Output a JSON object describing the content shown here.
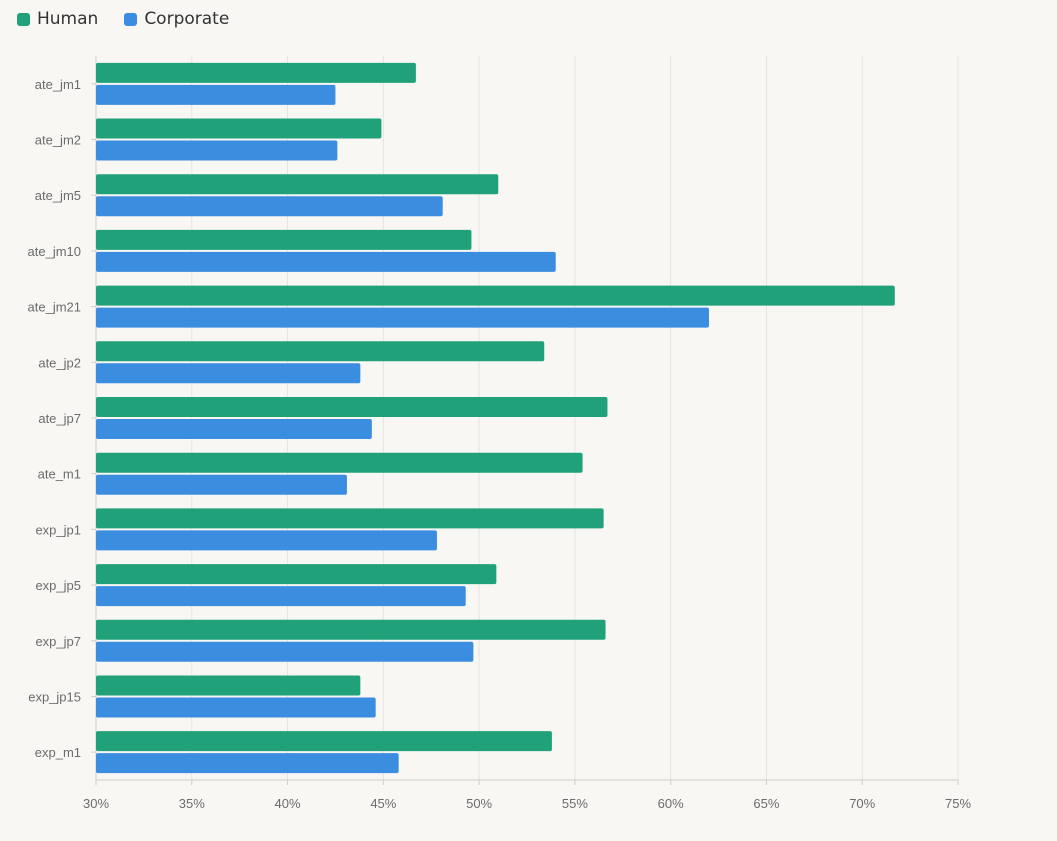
{
  "chart_data": {
    "type": "bar",
    "orientation": "horizontal",
    "categories": [
      "ate_jm1",
      "ate_jm2",
      "ate_jm5",
      "ate_jm10",
      "ate_jm21",
      "ate_jp2",
      "ate_jp7",
      "ate_m1",
      "exp_jp1",
      "exp_jp5",
      "exp_jp7",
      "exp_jp15",
      "exp_m1"
    ],
    "series": [
      {
        "name": "Human",
        "color": "#21a179",
        "values": [
          46.7,
          44.9,
          51.0,
          49.6,
          71.7,
          53.4,
          56.7,
          55.4,
          56.5,
          50.9,
          56.6,
          43.8,
          53.8
        ]
      },
      {
        "name": "Corporate",
        "color": "#3b8de0",
        "values": [
          42.5,
          42.6,
          48.1,
          54.0,
          62.0,
          43.8,
          44.4,
          43.1,
          47.8,
          49.3,
          49.7,
          44.6,
          45.8
        ]
      }
    ],
    "xlim": [
      30,
      75
    ],
    "xticks": [
      "30%",
      "35%",
      "40%",
      "45%",
      "50%",
      "55%",
      "60%",
      "65%",
      "70%",
      "75%"
    ],
    "xtick_values": [
      30,
      35,
      40,
      45,
      50,
      55,
      60,
      65,
      70,
      75
    ],
    "grid": true,
    "legend_position": "top-left"
  }
}
